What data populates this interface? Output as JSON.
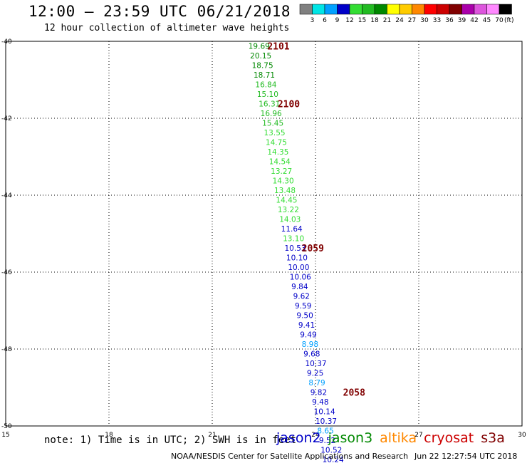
{
  "header": {
    "title": "12:00 – 23:59 UTC 06/21/2018",
    "subtitle": "12 hour collection of altimeter wave heights"
  },
  "legend": {
    "unit": "(ft)",
    "bins": [
      {
        "label": "3",
        "color": "#808080"
      },
      {
        "label": "6",
        "color": "#00e5e5"
      },
      {
        "label": "9",
        "color": "#00a0ff"
      },
      {
        "label": "12",
        "color": "#0000c8"
      },
      {
        "label": "15",
        "color": "#33dd33"
      },
      {
        "label": "18",
        "color": "#22bb22"
      },
      {
        "label": "21",
        "color": "#008800"
      },
      {
        "label": "24",
        "color": "#ffff00"
      },
      {
        "label": "27",
        "color": "#ffcc00"
      },
      {
        "label": "30",
        "color": "#ff8800"
      },
      {
        "label": "33",
        "color": "#ff0000"
      },
      {
        "label": "36",
        "color": "#cc0000"
      },
      {
        "label": "39",
        "color": "#800000"
      },
      {
        "label": "42",
        "color": "#aa00aa"
      },
      {
        "label": "45",
        "color": "#dd55dd"
      },
      {
        "label": "70",
        "color": "#ff88ff"
      },
      {
        "label": "",
        "color": "#000000"
      }
    ]
  },
  "colors": {
    "jason2": "#0000c8",
    "jason3": "#008800",
    "altika": "#ff8800",
    "cryosat": "#cc0000",
    "s3a": "#800000",
    "time_label": "#800000"
  },
  "chart_data": {
    "type": "scatter",
    "xlim": [
      15,
      30
    ],
    "ylim": [
      -50,
      -40
    ],
    "x_ticks": [
      "15",
      "18",
      "21",
      "24",
      "27",
      "30"
    ],
    "y_ticks": [
      "-40",
      "-42",
      "-44",
      "-46",
      "-48",
      "-50"
    ],
    "grid": true,
    "points": [
      {
        "x": 22.05,
        "y": -40.12,
        "label": "19.69",
        "color": "#008800"
      },
      {
        "x": 22.1,
        "y": -40.37,
        "label": "20.15",
        "color": "#008800"
      },
      {
        "x": 22.15,
        "y": -40.62,
        "label": "18.75",
        "color": "#008800"
      },
      {
        "x": 22.2,
        "y": -40.87,
        "label": "18.71",
        "color": "#008800"
      },
      {
        "x": 22.25,
        "y": -41.12,
        "label": "16.84",
        "color": "#22bb22"
      },
      {
        "x": 22.3,
        "y": -41.37,
        "label": "15.10",
        "color": "#22bb22"
      },
      {
        "x": 22.35,
        "y": -41.62,
        "label": "16.31",
        "color": "#22bb22"
      },
      {
        "x": 22.4,
        "y": -41.87,
        "label": "16.96",
        "color": "#22bb22"
      },
      {
        "x": 22.45,
        "y": -42.12,
        "label": "15.45",
        "color": "#22bb22"
      },
      {
        "x": 22.5,
        "y": -42.37,
        "label": "13.55",
        "color": "#33dd33"
      },
      {
        "x": 22.55,
        "y": -42.62,
        "label": "14.75",
        "color": "#33dd33"
      },
      {
        "x": 22.6,
        "y": -42.87,
        "label": "14.35",
        "color": "#33dd33"
      },
      {
        "x": 22.65,
        "y": -43.12,
        "label": "14.54",
        "color": "#33dd33"
      },
      {
        "x": 22.7,
        "y": -43.37,
        "label": "13.27",
        "color": "#33dd33"
      },
      {
        "x": 22.75,
        "y": -43.62,
        "label": "14.30",
        "color": "#33dd33"
      },
      {
        "x": 22.8,
        "y": -43.87,
        "label": "13.48",
        "color": "#33dd33"
      },
      {
        "x": 22.85,
        "y": -44.12,
        "label": "14.45",
        "color": "#33dd33"
      },
      {
        "x": 22.9,
        "y": -44.37,
        "label": "13.22",
        "color": "#33dd33"
      },
      {
        "x": 22.95,
        "y": -44.62,
        "label": "14.03",
        "color": "#33dd33"
      },
      {
        "x": 23.0,
        "y": -44.87,
        "label": "11.64",
        "color": "#0000c8"
      },
      {
        "x": 23.05,
        "y": -45.12,
        "label": "13.10",
        "color": "#33dd33"
      },
      {
        "x": 23.1,
        "y": -45.37,
        "label": "10.53",
        "color": "#0000c8"
      },
      {
        "x": 23.15,
        "y": -45.62,
        "label": "10.10",
        "color": "#0000c8"
      },
      {
        "x": 23.2,
        "y": -45.87,
        "label": "10.00",
        "color": "#0000c8"
      },
      {
        "x": 23.25,
        "y": -46.12,
        "label": "10.06",
        "color": "#0000c8"
      },
      {
        "x": 23.3,
        "y": -46.37,
        "label": "9.84",
        "color": "#0000c8"
      },
      {
        "x": 23.35,
        "y": -46.62,
        "label": "9.62",
        "color": "#0000c8"
      },
      {
        "x": 23.4,
        "y": -46.87,
        "label": "9.59",
        "color": "#0000c8"
      },
      {
        "x": 23.45,
        "y": -47.12,
        "label": "9.50",
        "color": "#0000c8"
      },
      {
        "x": 23.5,
        "y": -47.37,
        "label": "9.41",
        "color": "#0000c8"
      },
      {
        "x": 23.55,
        "y": -47.62,
        "label": "9.49",
        "color": "#0000c8"
      },
      {
        "x": 23.6,
        "y": -47.87,
        "label": "8.98",
        "color": "#00a0ff"
      },
      {
        "x": 23.65,
        "y": -48.12,
        "label": "9.68",
        "color": "#0000c8"
      },
      {
        "x": 23.7,
        "y": -48.37,
        "label": "10.37",
        "color": "#0000c8"
      },
      {
        "x": 23.75,
        "y": -48.62,
        "label": "9.25",
        "color": "#0000c8"
      },
      {
        "x": 23.8,
        "y": -48.87,
        "label": "8.79",
        "color": "#00a0ff"
      },
      {
        "x": 23.85,
        "y": -49.12,
        "label": "9.82",
        "color": "#0000c8"
      },
      {
        "x": 23.9,
        "y": -49.37,
        "label": "9.48",
        "color": "#0000c8"
      },
      {
        "x": 23.95,
        "y": -49.62,
        "label": "10.14",
        "color": "#0000c8"
      },
      {
        "x": 24.0,
        "y": -49.87,
        "label": "10.37",
        "color": "#0000c8"
      },
      {
        "x": 24.05,
        "y": -50.12,
        "label": "8.65",
        "color": "#00a0ff"
      },
      {
        "x": 24.1,
        "y": -50.37,
        "label": "9.52",
        "color": "#0000c8"
      },
      {
        "x": 24.15,
        "y": -50.62,
        "label": "10.52",
        "color": "#0000c8"
      },
      {
        "x": 24.2,
        "y": -50.87,
        "label": "10.24",
        "color": "#0000c8"
      }
    ],
    "time_labels": [
      {
        "x": 22.6,
        "y": -40.12,
        "label": "2101"
      },
      {
        "x": 22.9,
        "y": -41.62,
        "label": "2100"
      },
      {
        "x": 23.6,
        "y": -45.37,
        "label": "2059"
      },
      {
        "x": 24.8,
        "y": -49.12,
        "label": "2058"
      }
    ]
  },
  "note": "note: 1) Time is in UTC; 2) SWH is in feet",
  "satellites": [
    {
      "name": "jason2",
      "color": "#0000c8"
    },
    {
      "name": "jason3",
      "color": "#008800"
    },
    {
      "name": "altika",
      "color": "#ff8800"
    },
    {
      "name": "cryosat",
      "color": "#cc0000"
    },
    {
      "name": "s3a",
      "color": "#800000"
    }
  ],
  "footer": {
    "credit": "NOAA/NESDIS Center for Satellite Applications and Research",
    "timestamp": "Jun 22 12:27:54 UTC 2018"
  }
}
